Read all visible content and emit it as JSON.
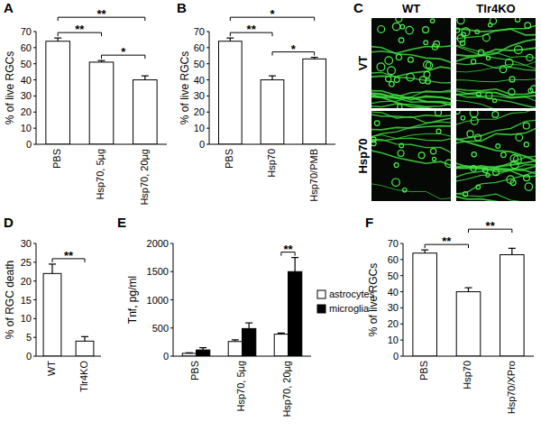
{
  "chart_data": [
    {
      "type": "bar",
      "title": "A",
      "y_label": "% of live RGCs",
      "categories": [
        "PBS",
        "Hsp70, 5µg",
        "Hsp70, 20µg"
      ],
      "values": [
        64,
        51,
        40
      ],
      "errors": [
        2,
        1,
        2.5
      ],
      "color": "#ffffff",
      "ylim": [
        0,
        70
      ],
      "yticks": [
        0,
        10,
        20,
        30,
        40,
        50,
        60,
        70
      ],
      "grid": false,
      "annotations": [
        {
          "between": [
            "PBS",
            "Hsp70, 5µg"
          ],
          "label": "**"
        },
        {
          "between": [
            "PBS",
            "Hsp70, 20µg"
          ],
          "label": "**"
        },
        {
          "between": [
            "Hsp70, 5µg",
            "Hsp70, 20µg"
          ],
          "label": "*"
        }
      ]
    },
    {
      "type": "bar",
      "title": "B",
      "y_label": "% of live RGCs",
      "categories": [
        "PBS",
        "Hsp70",
        "Hsp70/PMB"
      ],
      "values": [
        64,
        40,
        53
      ],
      "errors": [
        2,
        2.5,
        1
      ],
      "color": "#ffffff",
      "ylim": [
        0,
        70
      ],
      "yticks": [
        0,
        10,
        20,
        30,
        40,
        50,
        60,
        70
      ],
      "grid": false,
      "annotations": [
        {
          "between": [
            "PBS",
            "Hsp70"
          ],
          "label": "**"
        },
        {
          "between": [
            "PBS",
            "Hsp70/PMB"
          ],
          "label": "*"
        },
        {
          "between": [
            "Hsp70",
            "Hsp70/PMB"
          ],
          "label": "*"
        }
      ]
    },
    {
      "type": "bar",
      "title": "D",
      "y_label": "% of RGC death",
      "categories": [
        "WT",
        "Tlr4KO"
      ],
      "values": [
        22,
        4
      ],
      "errors": [
        2.5,
        1.2
      ],
      "color": "#ffffff",
      "ylim": [
        0,
        30
      ],
      "yticks": [
        0,
        5,
        10,
        15,
        20,
        25,
        30
      ],
      "grid": false,
      "annotations": [
        {
          "between": [
            "WT",
            "Tlr4KO"
          ],
          "label": "**"
        }
      ]
    },
    {
      "type": "bar",
      "title": "E",
      "y_label": "Tnf, pg/ml",
      "categories": [
        "PBS",
        "Hsp70, 5µg",
        "Hsp70, 20µg"
      ],
      "series": [
        {
          "name": "astrocytes",
          "color": "#ffffff",
          "values": [
            50,
            260,
            390
          ],
          "errors": [
            10,
            30,
            20
          ]
        },
        {
          "name": "microglia",
          "color": "#000000",
          "values": [
            110,
            490,
            1500
          ],
          "errors": [
            40,
            100,
            250
          ]
        }
      ],
      "ylim": [
        0,
        2000
      ],
      "yticks": [
        0,
        500,
        1000,
        1500,
        2000
      ],
      "grid": false,
      "legend": "right",
      "annotations": [
        {
          "category": "Hsp70, 20µg",
          "between": [
            "astrocytes",
            "microglia"
          ],
          "label": "**"
        }
      ]
    },
    {
      "type": "bar",
      "title": "F",
      "y_label": "% of live RGCs",
      "categories": [
        "PBS",
        "Hsp70",
        "Hsp70/XPro"
      ],
      "values": [
        64,
        40,
        63
      ],
      "errors": [
        2,
        2.5,
        4
      ],
      "color": "#ffffff",
      "ylim": [
        0,
        70
      ],
      "yticks": [
        0,
        10,
        20,
        30,
        40,
        50,
        60,
        70
      ],
      "grid": false,
      "annotations": [
        {
          "between": [
            "PBS",
            "Hsp70"
          ],
          "label": "**"
        },
        {
          "between": [
            "Hsp70",
            "Hsp70/XPro"
          ],
          "label": "**"
        }
      ]
    }
  ],
  "image_panel": {
    "title": "C",
    "columns": [
      "WT",
      "Tlr4KO"
    ],
    "rows": [
      "VT",
      "Hsp70"
    ]
  }
}
